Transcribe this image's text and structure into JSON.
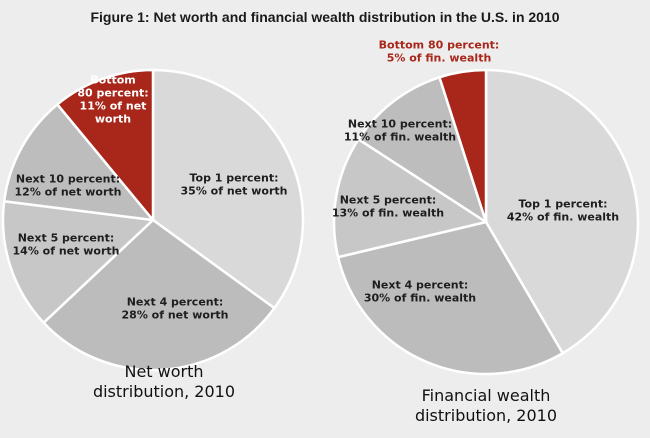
{
  "title": "Figure 1: Net worth and financial wealth distribution in the U.S. in 2010",
  "chart_data": [
    {
      "type": "pie",
      "title": "Net worth distribution, 2010",
      "caption_lines": [
        "Net worth",
        "distribution, 2010"
      ],
      "slices": [
        {
          "name": "Top 1 percent",
          "value": 35,
          "label_lines": [
            "Top 1 percent:",
            "35% of net worth"
          ],
          "color": "#d9d9d9"
        },
        {
          "name": "Next 4 percent",
          "value": 28,
          "label_lines": [
            "Next 4 percent:",
            "28% of net worth"
          ],
          "color": "#bcbcbc"
        },
        {
          "name": "Next 5 percent",
          "value": 14,
          "label_lines": [
            "Next 5 percent:",
            "14% of net worth"
          ],
          "color": "#c7c7c7"
        },
        {
          "name": "Next 10 percent",
          "value": 12,
          "label_lines": [
            "Next 10 percent:",
            "12% of net worth"
          ],
          "color": "#bdbdbd"
        },
        {
          "name": "Bottom 80 percent",
          "value": 11,
          "label_lines": [
            "Bottom",
            "80 percent:",
            "11% of net",
            "worth"
          ],
          "color": "#a8271a",
          "highlight": true
        }
      ]
    },
    {
      "type": "pie",
      "title": "Financial wealth distribution, 2010",
      "caption_lines": [
        "Financial wealth",
        "distribution, 2010"
      ],
      "slices": [
        {
          "name": "Top 1 percent",
          "value": 42,
          "label_lines": [
            "Top 1 percent:",
            "42% of fin. wealth"
          ],
          "color": "#d9d9d9"
        },
        {
          "name": "Next 4 percent",
          "value": 30,
          "label_lines": [
            "Next 4 percent:",
            "30% of fin. wealth"
          ],
          "color": "#bcbcbc"
        },
        {
          "name": "Next 5 percent",
          "value": 13,
          "label_lines": [
            "Next 5 percent:",
            "13% of fin. wealth"
          ],
          "color": "#c7c7c7"
        },
        {
          "name": "Next 10 percent",
          "value": 11,
          "label_lines": [
            "Next 10 percent:",
            "11% of fin. wealth"
          ],
          "color": "#bdbdbd"
        },
        {
          "name": "Bottom 80 percent",
          "value": 5,
          "label_lines": [
            "Bottom 80 percent:",
            "5% of fin. wealth"
          ],
          "color": "#a8271a",
          "highlight": true
        }
      ]
    }
  ]
}
